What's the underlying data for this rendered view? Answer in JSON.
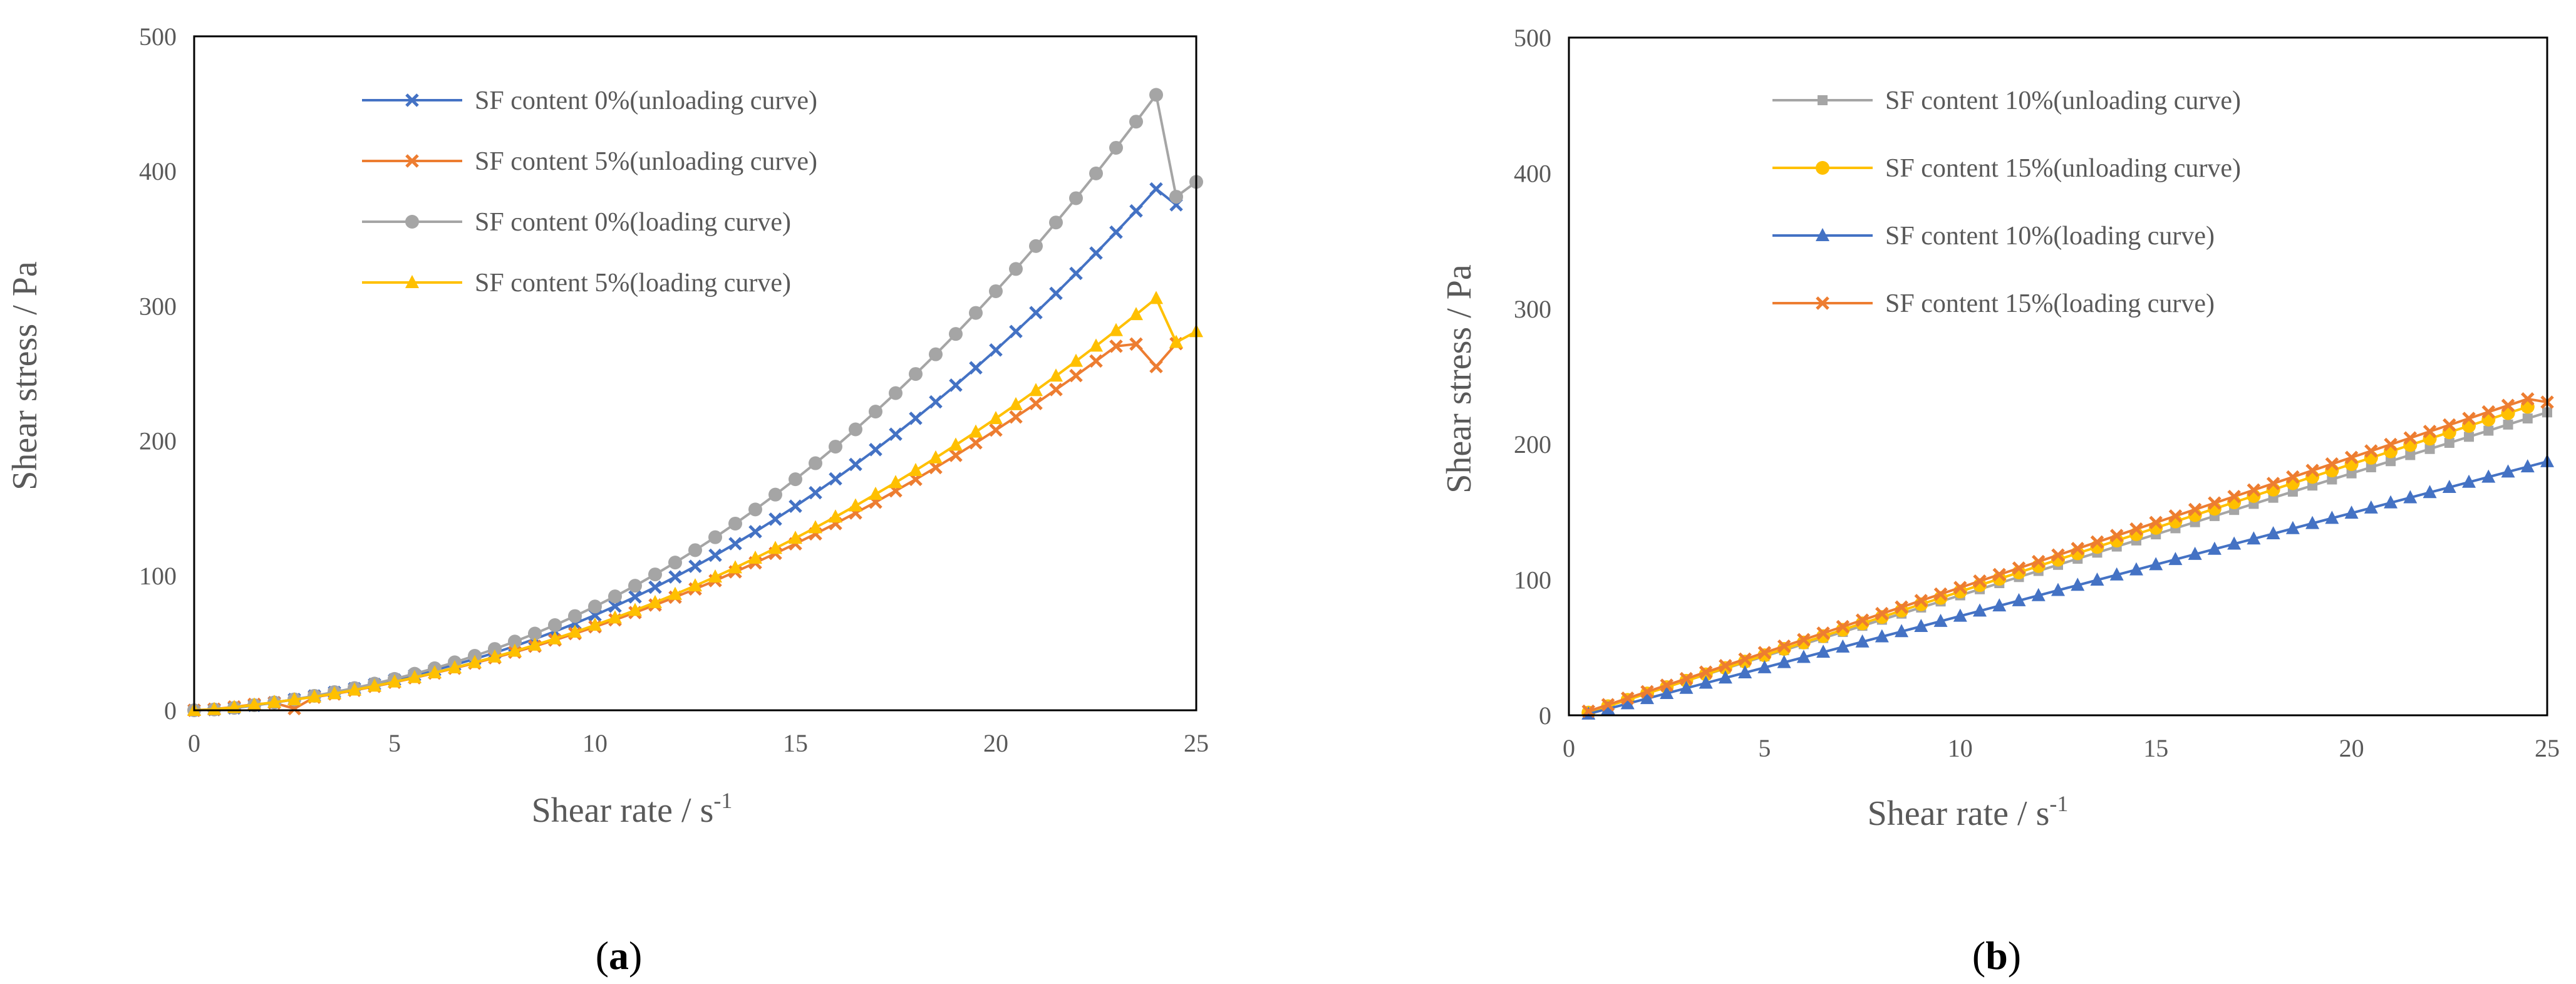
{
  "chart_data": [
    {
      "type": "line",
      "panel_caption": [
        "(",
        "a",
        ")"
      ],
      "xlabel": "Shear rate / s",
      "xlabel_sup": "-1",
      "ylabel": "Shear stress / Pa",
      "xlim": [
        0,
        25
      ],
      "ylim": [
        0,
        500
      ],
      "xticks": [
        "0",
        "5",
        "10",
        "15",
        "20",
        "25"
      ],
      "yticks": [
        "0",
        "100",
        "200",
        "300",
        "400",
        "500"
      ],
      "grid": false,
      "legend_position": "top-left",
      "series": [
        {
          "name": "SF content 0%(unloading curve)",
          "color": "#4472C4",
          "marker": "x",
          "x": [
            0,
            0.5,
            1,
            1.5,
            2,
            2.5,
            3,
            3.5,
            4,
            4.5,
            5,
            5.5,
            6,
            6.5,
            7,
            7.5,
            8,
            8.5,
            9,
            9.5,
            10,
            10.5,
            11,
            11.5,
            12,
            12.5,
            13,
            13.5,
            14,
            14.5,
            15,
            15.5,
            16,
            16.5,
            17,
            17.5,
            18,
            18.5,
            19,
            19.5,
            20,
            20.5,
            21,
            21.5,
            22,
            22.5,
            23,
            23.5,
            24,
            24.5
          ],
          "y": [
            0,
            0.5,
            1.7,
            3.6,
            5.7,
            8,
            10.6,
            13.3,
            16.1,
            19.2,
            22.5,
            26,
            29.8,
            33.8,
            38.1,
            42.7,
            47.6,
            52.9,
            58.5,
            64.4,
            70.6,
            77.2,
            84.1,
            91.3,
            98.9,
            106.8,
            115,
            123.6,
            132.5,
            141.8,
            151.4,
            161.4,
            171.7,
            182.4,
            193.4,
            204.8,
            216.6,
            228.8,
            241.2,
            254.1,
            267.3,
            281,
            295,
            309.3,
            324.1,
            339.2,
            354.7,
            370.5,
            386.8,
            375
          ]
        },
        {
          "name": "SF content 5%(unloading curve)",
          "color": "#ED7D31",
          "marker": "x",
          "x": [
            0,
            0.5,
            1,
            1.5,
            2,
            2.5,
            3,
            3.5,
            4,
            4.5,
            5,
            5.5,
            6,
            6.5,
            7,
            7.5,
            8,
            8.5,
            9,
            9.5,
            10,
            10.5,
            11,
            11.5,
            12,
            12.5,
            13,
            13.5,
            14,
            14.5,
            15,
            15.5,
            16,
            16.5,
            17,
            17.5,
            18,
            18.5,
            19,
            19.5,
            20,
            20.5,
            21,
            21.5,
            22,
            22.5,
            23,
            23.5,
            24,
            24.5
          ],
          "y": [
            0,
            0.8,
            2.5,
            4.4,
            5.5,
            1.2,
            9.7,
            12.1,
            14.8,
            17.7,
            20.8,
            24.1,
            27.6,
            31.2,
            35,
            39,
            43.1,
            47.5,
            52.1,
            56.9,
            61.9,
            67.1,
            72.5,
            78.1,
            83.9,
            90,
            96.2,
            102.7,
            109.4,
            116.4,
            123.5,
            130.9,
            138.5,
            146.4,
            154.4,
            162.8,
            171.3,
            180.1,
            189.1,
            198.4,
            207.9,
            217.6,
            227.6,
            237.9,
            248.3,
            259.1,
            270.1,
            271.7,
            255,
            272
          ]
        },
        {
          "name": "SF content 0%(loading curve)",
          "color": "#A5A5A5",
          "marker": "circle",
          "x": [
            0,
            0.5,
            1,
            1.5,
            2,
            2.5,
            3,
            3.5,
            4,
            4.5,
            5,
            5.5,
            6,
            6.5,
            7,
            7.5,
            8,
            8.5,
            9,
            9.5,
            10,
            10.5,
            11,
            11.5,
            12,
            12.5,
            13,
            13.5,
            14,
            14.5,
            15,
            15.5,
            16,
            16.5,
            17,
            17.5,
            18,
            18.5,
            19,
            19.5,
            20,
            20.5,
            21,
            21.5,
            22,
            22.5,
            23,
            23.5,
            24,
            24.5,
            25
          ],
          "y": [
            0,
            0.6,
            1.8,
            3.8,
            5.8,
            8.1,
            10.7,
            13.5,
            16.5,
            19.8,
            23.3,
            27.1,
            31.2,
            35.6,
            40.4,
            45.5,
            51,
            56.9,
            63.2,
            69.9,
            77,
            84.5,
            92.4,
            100.8,
            109.6,
            118.8,
            128.4,
            138.5,
            149,
            160,
            171.4,
            183.3,
            195.6,
            208.4,
            221.6,
            235.3,
            249.5,
            264.1,
            279.2,
            294.8,
            310.9,
            327.4,
            344.4,
            361.9,
            379.9,
            398.3,
            417.3,
            436.7,
            456.6,
            381,
            392
          ]
        },
        {
          "name": "SF content 5%(loading curve)",
          "color": "#FFC000",
          "marker": "triangle",
          "x": [
            0,
            0.5,
            1,
            1.5,
            2,
            2.5,
            3,
            3.5,
            4,
            4.5,
            5,
            5.5,
            6,
            6.5,
            7,
            7.5,
            8,
            8.5,
            9,
            9.5,
            10,
            10.5,
            11,
            11.5,
            12,
            12.5,
            13,
            13.5,
            14,
            14.5,
            15,
            15.5,
            16,
            16.5,
            17,
            17.5,
            18,
            18.5,
            19,
            19.5,
            20,
            20.5,
            21,
            21.5,
            22,
            22.5,
            23,
            23.5,
            24,
            24.5,
            25
          ],
          "y": [
            0,
            0.7,
            2.2,
            4,
            6,
            7.9,
            10,
            12.4,
            15.1,
            18,
            21.1,
            24.4,
            27.9,
            31.6,
            35.5,
            39.6,
            43.9,
            48.4,
            53.1,
            58,
            63.2,
            68.6,
            74.2,
            80,
            86.1,
            92.4,
            99,
            105.8,
            112.9,
            120.2,
            127.7,
            135.5,
            143.5,
            151.7,
            160.3,
            169,
            178,
            187.3,
            196.8,
            206.5,
            216.5,
            226.8,
            237.3,
            248,
            259,
            270.3,
            281.8,
            293.6,
            305.6,
            273,
            281
          ]
        }
      ]
    },
    {
      "type": "line",
      "panel_caption": [
        "(",
        "b",
        ")"
      ],
      "xlabel": "Shear rate / s",
      "xlabel_sup": "-1",
      "ylabel": "Shear stress / Pa",
      "xlim": [
        0,
        25
      ],
      "ylim": [
        0,
        500
      ],
      "xticks": [
        "0",
        "5",
        "10",
        "15",
        "20",
        "25"
      ],
      "yticks": [
        "0",
        "100",
        "200",
        "300",
        "400",
        "500"
      ],
      "grid": false,
      "legend_position": "top-left",
      "series": [
        {
          "name": "SF content 10%(unloading curve)",
          "color": "#A5A5A5",
          "marker": "square",
          "x": [
            0.5,
            1,
            1.5,
            2,
            2.5,
            3,
            3.5,
            4,
            4.5,
            5,
            5.5,
            6,
            6.5,
            7,
            7.5,
            8,
            8.5,
            9,
            9.5,
            10,
            10.5,
            11,
            11.5,
            12,
            12.5,
            13,
            13.5,
            14,
            14.5,
            15,
            15.5,
            16,
            16.5,
            17,
            17.5,
            18,
            18.5,
            19,
            19.5,
            20,
            20.5,
            21,
            21.5,
            22,
            22.5,
            23,
            23.5,
            24,
            24.5,
            25
          ],
          "y": [
            3,
            7.5,
            12,
            16.5,
            21,
            25.5,
            30,
            34.5,
            39,
            43.5,
            48,
            52.5,
            57,
            61.5,
            66,
            70.5,
            75,
            79.5,
            84,
            88.5,
            93,
            97.5,
            102,
            106.5,
            111,
            115.5,
            120,
            124.5,
            129,
            133.5,
            138,
            142.5,
            147,
            151.5,
            156,
            160.5,
            165,
            169.5,
            174,
            178.5,
            183,
            187.5,
            192,
            196.5,
            201,
            205.5,
            210,
            214.5,
            219,
            223.5
          ]
        },
        {
          "name": "SF content 15%(unloading curve)",
          "color": "#FFC000",
          "marker": "circle",
          "x": [
            0.5,
            1,
            1.5,
            2,
            2.5,
            3,
            3.5,
            4,
            4.5,
            5,
            5.5,
            6,
            6.5,
            7,
            7.5,
            8,
            8.5,
            9,
            9.5,
            10,
            10.5,
            11,
            11.5,
            12,
            12.5,
            13,
            13.5,
            14,
            14.5,
            15,
            15.5,
            16,
            16.5,
            17,
            17.5,
            18,
            18.5,
            19,
            19.5,
            20,
            20.5,
            21,
            21.5,
            22,
            22.5,
            23,
            23.5,
            24,
            24.5
          ],
          "y": [
            2,
            6.7,
            11.4,
            16.1,
            20.8,
            25.5,
            30.2,
            34.9,
            39.6,
            44.3,
            49,
            53.7,
            58.4,
            63.1,
            67.8,
            72.5,
            77.2,
            81.9,
            86.6,
            91.3,
            96,
            100.7,
            105.4,
            110.1,
            114.8,
            119.5,
            124.2,
            128.9,
            133.6,
            138.3,
            143,
            147.7,
            152.4,
            157.1,
            161.8,
            166.5,
            171.2,
            175.9,
            180.6,
            185.3,
            190,
            194.7,
            199.4,
            204.1,
            208.8,
            213.5,
            218.2,
            222.9,
            227.6
          ]
        },
        {
          "name": "SF content 10%(loading curve)",
          "color": "#4472C4",
          "marker": "triangle",
          "x": [
            0.5,
            1,
            1.5,
            2,
            2.5,
            3,
            3.5,
            4,
            4.5,
            5,
            5.5,
            6,
            6.5,
            7,
            7.5,
            8,
            8.5,
            9,
            9.5,
            10,
            10.5,
            11,
            11.5,
            12,
            12.5,
            13,
            13.5,
            14,
            14.5,
            15,
            15.5,
            16,
            16.5,
            17,
            17.5,
            18,
            18.5,
            19,
            19.5,
            20,
            20.5,
            21,
            21.5,
            22,
            22.5,
            23,
            23.5,
            24,
            24.5,
            25
          ],
          "y": [
            1,
            4.8,
            8.6,
            12.4,
            16.2,
            20,
            23.8,
            27.6,
            31.4,
            35.2,
            39,
            42.8,
            46.6,
            50.4,
            54.2,
            58,
            61.8,
            65.6,
            69.4,
            73.2,
            77,
            80.8,
            84.6,
            88.4,
            92.2,
            96,
            99.8,
            103.6,
            107.4,
            111.2,
            115,
            118.8,
            122.6,
            126.4,
            130.2,
            134,
            137.8,
            141.6,
            145.4,
            149.2,
            153,
            156.8,
            160.6,
            164.4,
            168.2,
            172,
            175.8,
            179.6,
            183.4,
            187.2
          ]
        },
        {
          "name": "SF content 15%(loading curve)",
          "color": "#ED7D31",
          "marker": "x",
          "x": [
            0.5,
            1,
            1.5,
            2,
            2.5,
            3,
            3.5,
            4,
            4.5,
            5,
            5.5,
            6,
            6.5,
            7,
            7.5,
            8,
            8.5,
            9,
            9.5,
            10,
            10.5,
            11,
            11.5,
            12,
            12.5,
            13,
            13.5,
            14,
            14.5,
            15,
            15.5,
            16,
            16.5,
            17,
            17.5,
            18,
            18.5,
            19,
            19.5,
            20,
            20.5,
            21,
            21.5,
            22,
            22.5,
            23,
            23.5,
            24,
            24.5,
            25
          ],
          "y": [
            3,
            7.8,
            12.6,
            17.4,
            22.2,
            27,
            31.8,
            36.6,
            41.4,
            46.2,
            51,
            55.8,
            60.6,
            65.4,
            70.2,
            75,
            79.8,
            84.6,
            89.4,
            94.2,
            99,
            103.8,
            108.6,
            113.4,
            118.2,
            123,
            127.8,
            132.6,
            137.4,
            142.2,
            147,
            151.8,
            156.6,
            161.4,
            166.2,
            171,
            175.8,
            180.6,
            185.4,
            190.2,
            195,
            199.8,
            204.6,
            209.4,
            214.2,
            219,
            223.8,
            228.6,
            233.4,
            231
          ]
        }
      ]
    }
  ]
}
